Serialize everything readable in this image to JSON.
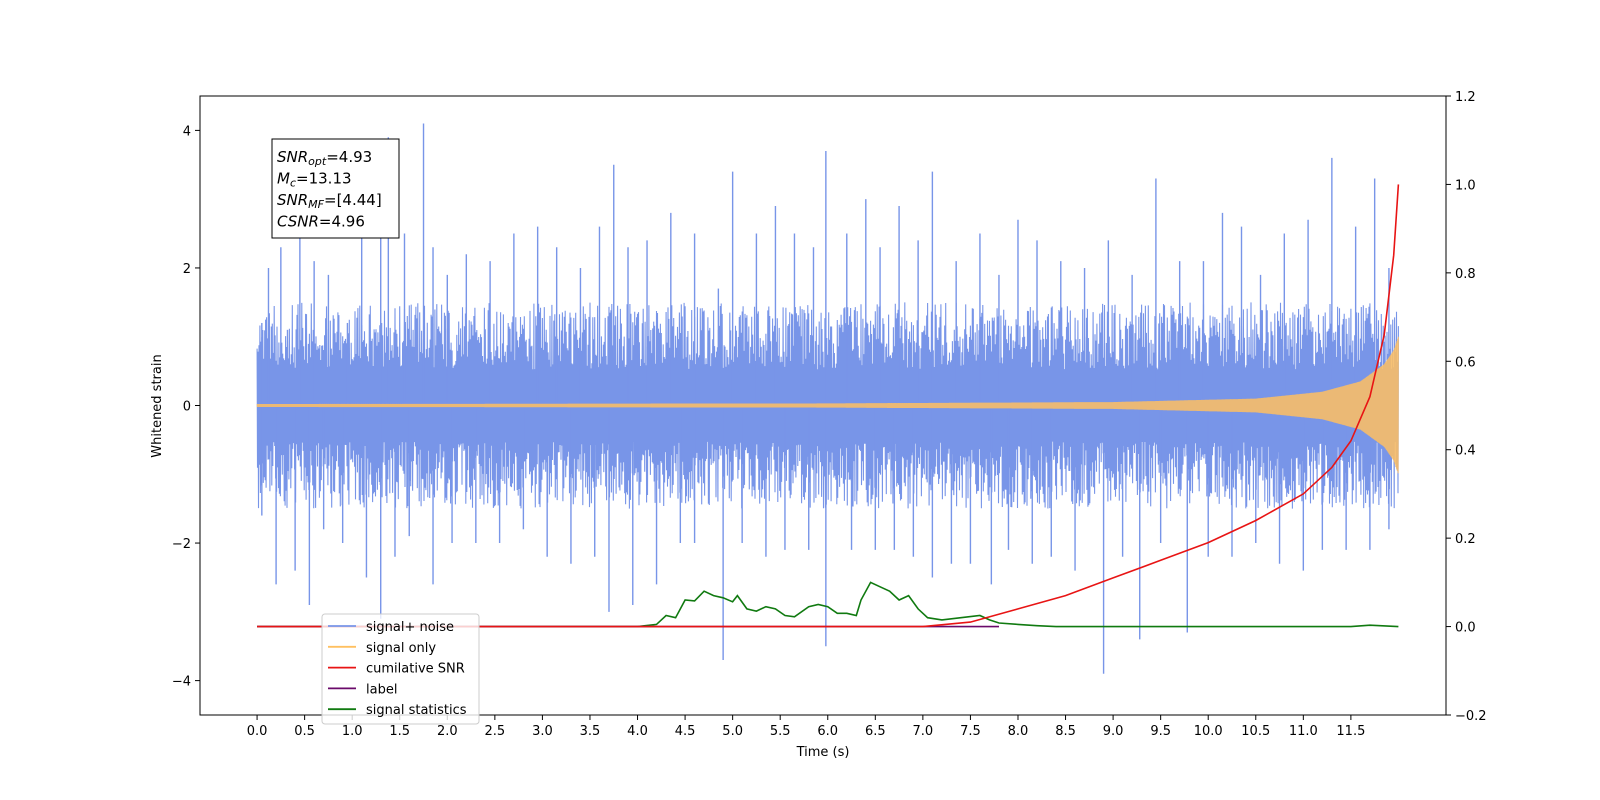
{
  "chart_data": {
    "type": "line",
    "xlabel": "Time (s)",
    "ylabel_left": "Whitened strain",
    "ylabel_right": "",
    "xlim": [
      -0.6,
      12.5
    ],
    "ylim_left": [
      -4.5,
      4.5
    ],
    "ylim_right": [
      -0.2,
      1.2
    ],
    "x_ticks": [
      "0.0",
      "0.5",
      "1.0",
      "1.5",
      "2.0",
      "2.5",
      "3.0",
      "3.5",
      "4.0",
      "4.5",
      "5.0",
      "5.5",
      "6.0",
      "6.5",
      "7.0",
      "7.5",
      "8.0",
      "8.5",
      "9.0",
      "9.5",
      "10.0",
      "10.5",
      "11.0",
      "11.5"
    ],
    "y_ticks_left": [
      "4",
      "2",
      "0",
      "−2",
      "−4"
    ],
    "y_ticks_right": [
      "1.2",
      "1.0",
      "0.8",
      "0.6",
      "0.4",
      "0.2",
      "0.0",
      "−0.2"
    ],
    "grid": false,
    "legend_position": "lower-left",
    "annotation": {
      "lines": [
        {
          "main": "SNR",
          "sub": "opt",
          "value": "=4.93"
        },
        {
          "main": "M",
          "sub": "c",
          "value": "=13.13"
        },
        {
          "main": "SNR",
          "sub": "MF",
          "value": "=[4.44]"
        },
        {
          "main": "CSNR",
          "sub": "",
          "value": "=4.96"
        }
      ]
    },
    "series": [
      {
        "name": "signal+ noise",
        "axis": "left",
        "color": "#7895e8",
        "x_range": [
          0.0,
          12.0
        ],
        "envelope_upper": 1.5,
        "envelope_lower": -1.5,
        "peaks_up": [
          [
            0.05,
            1.2
          ],
          [
            0.12,
            2.0
          ],
          [
            0.25,
            2.3
          ],
          [
            0.32,
            1.1
          ],
          [
            0.45,
            3.0
          ],
          [
            0.6,
            2.1
          ],
          [
            0.75,
            1.9
          ],
          [
            0.95,
            1.2
          ],
          [
            1.1,
            2.6
          ],
          [
            1.3,
            2.7
          ],
          [
            1.38,
            3.9
          ],
          [
            1.55,
            2.5
          ],
          [
            1.75,
            4.1
          ],
          [
            1.85,
            2.3
          ],
          [
            2.0,
            1.9
          ],
          [
            2.2,
            2.2
          ],
          [
            2.45,
            2.1
          ],
          [
            2.7,
            2.5
          ],
          [
            2.95,
            2.6
          ],
          [
            3.15,
            2.3
          ],
          [
            3.4,
            2.0
          ],
          [
            3.6,
            2.6
          ],
          [
            3.75,
            3.5
          ],
          [
            3.9,
            2.3
          ],
          [
            4.1,
            2.4
          ],
          [
            4.35,
            2.8
          ],
          [
            4.6,
            2.5
          ],
          [
            4.85,
            1.7
          ],
          [
            5.0,
            3.4
          ],
          [
            5.25,
            2.5
          ],
          [
            5.45,
            2.9
          ],
          [
            5.65,
            2.5
          ],
          [
            5.85,
            2.3
          ],
          [
            5.98,
            3.7
          ],
          [
            6.2,
            2.5
          ],
          [
            6.4,
            3.0
          ],
          [
            6.55,
            2.3
          ],
          [
            6.75,
            2.9
          ],
          [
            6.95,
            2.4
          ],
          [
            7.1,
            3.4
          ],
          [
            7.35,
            2.1
          ],
          [
            7.6,
            2.5
          ],
          [
            7.8,
            1.9
          ],
          [
            8.0,
            2.7
          ],
          [
            8.2,
            2.4
          ],
          [
            8.45,
            2.1
          ],
          [
            8.7,
            2.0
          ],
          [
            8.95,
            2.4
          ],
          [
            9.2,
            1.9
          ],
          [
            9.45,
            3.3
          ],
          [
            9.7,
            2.1
          ],
          [
            9.95,
            2.1
          ],
          [
            10.15,
            2.8
          ],
          [
            10.35,
            2.6
          ],
          [
            10.55,
            1.9
          ],
          [
            10.8,
            2.5
          ],
          [
            11.05,
            2.7
          ],
          [
            11.3,
            3.6
          ],
          [
            11.55,
            2.6
          ],
          [
            11.75,
            3.3
          ],
          [
            11.9,
            2.0
          ]
        ],
        "peaks_down": [
          [
            0.05,
            -1.6
          ],
          [
            0.2,
            -2.6
          ],
          [
            0.4,
            -2.4
          ],
          [
            0.55,
            -2.9
          ],
          [
            0.7,
            -1.8
          ],
          [
            0.9,
            -2.0
          ],
          [
            1.15,
            -2.5
          ],
          [
            1.3,
            -3.1
          ],
          [
            1.45,
            -2.2
          ],
          [
            1.6,
            -1.9
          ],
          [
            1.85,
            -2.6
          ],
          [
            2.05,
            -2.0
          ],
          [
            2.3,
            -2.0
          ],
          [
            2.55,
            -2.0
          ],
          [
            2.8,
            -1.8
          ],
          [
            3.05,
            -2.2
          ],
          [
            3.3,
            -2.3
          ],
          [
            3.55,
            -2.2
          ],
          [
            3.7,
            -3.0
          ],
          [
            3.95,
            -2.9
          ],
          [
            4.2,
            -2.6
          ],
          [
            4.45,
            -2.0
          ],
          [
            4.6,
            -2.0
          ],
          [
            4.9,
            -3.7
          ],
          [
            5.1,
            -2.0
          ],
          [
            5.35,
            -2.2
          ],
          [
            5.55,
            -2.1
          ],
          [
            5.8,
            -2.1
          ],
          [
            5.98,
            -3.5
          ],
          [
            6.25,
            -2.1
          ],
          [
            6.5,
            -2.1
          ],
          [
            6.7,
            -2.1
          ],
          [
            6.9,
            -2.2
          ],
          [
            7.1,
            -2.5
          ],
          [
            7.3,
            -2.3
          ],
          [
            7.5,
            -2.3
          ],
          [
            7.72,
            -2.6
          ],
          [
            7.9,
            -2.1
          ],
          [
            8.15,
            -2.3
          ],
          [
            8.35,
            -2.2
          ],
          [
            8.6,
            -2.4
          ],
          [
            8.9,
            -3.9
          ],
          [
            9.1,
            -2.2
          ],
          [
            9.28,
            -3.4
          ],
          [
            9.5,
            -2.0
          ],
          [
            9.78,
            -3.3
          ],
          [
            10.0,
            -2.2
          ],
          [
            10.25,
            -2.2
          ],
          [
            10.5,
            -2.0
          ],
          [
            10.75,
            -2.3
          ],
          [
            11.0,
            -2.4
          ],
          [
            11.2,
            -2.1
          ],
          [
            11.45,
            -2.1
          ],
          [
            11.7,
            -2.1
          ],
          [
            11.9,
            -1.8
          ]
        ]
      },
      {
        "name": "signal only",
        "axis": "left",
        "color": "#ffc060",
        "x_range": [
          0.0,
          12.0
        ],
        "amplitude_points": [
          [
            0.0,
            0.02
          ],
          [
            6.0,
            0.03
          ],
          [
            9.0,
            0.05
          ],
          [
            10.5,
            0.1
          ],
          [
            11.2,
            0.2
          ],
          [
            11.6,
            0.35
          ],
          [
            11.85,
            0.6
          ],
          [
            11.95,
            0.8
          ],
          [
            12.0,
            1.0
          ]
        ]
      },
      {
        "name": "cumilative SNR",
        "axis": "right",
        "color": "#e81414",
        "x": [
          0.0,
          7.0,
          7.5,
          8.0,
          8.5,
          9.0,
          9.5,
          10.0,
          10.5,
          11.0,
          11.3,
          11.5,
          11.7,
          11.85,
          11.95,
          12.0
        ],
        "y": [
          0.0,
          0.0,
          0.01,
          0.04,
          0.07,
          0.11,
          0.15,
          0.19,
          0.24,
          0.3,
          0.36,
          0.42,
          0.52,
          0.66,
          0.84,
          1.0
        ]
      },
      {
        "name": "label",
        "axis": "right",
        "color": "#6a0a6a",
        "x": [
          0.0,
          7.8
        ],
        "y": [
          0.0,
          0.0
        ]
      },
      {
        "name": "signal statistics",
        "axis": "right",
        "color": "#107a10",
        "x": [
          0.0,
          4.0,
          4.2,
          4.3,
          4.4,
          4.5,
          4.6,
          4.7,
          4.8,
          4.9,
          5.0,
          5.05,
          5.15,
          5.25,
          5.35,
          5.45,
          5.55,
          5.65,
          5.8,
          5.9,
          6.0,
          6.1,
          6.2,
          6.3,
          6.35,
          6.45,
          6.55,
          6.65,
          6.75,
          6.85,
          6.95,
          7.05,
          7.2,
          7.4,
          7.6,
          7.7,
          7.8,
          8.0,
          8.2,
          8.4,
          11.5,
          11.7,
          12.0
        ],
        "y": [
          0.0,
          0.0,
          0.005,
          0.025,
          0.02,
          0.06,
          0.058,
          0.08,
          0.07,
          0.065,
          0.056,
          0.07,
          0.04,
          0.035,
          0.045,
          0.04,
          0.025,
          0.022,
          0.045,
          0.05,
          0.045,
          0.03,
          0.03,
          0.025,
          0.06,
          0.1,
          0.09,
          0.08,
          0.06,
          0.07,
          0.04,
          0.02,
          0.015,
          0.02,
          0.025,
          0.015,
          0.008,
          0.005,
          0.002,
          0.0,
          0.0,
          0.003,
          0.0
        ]
      }
    ]
  }
}
